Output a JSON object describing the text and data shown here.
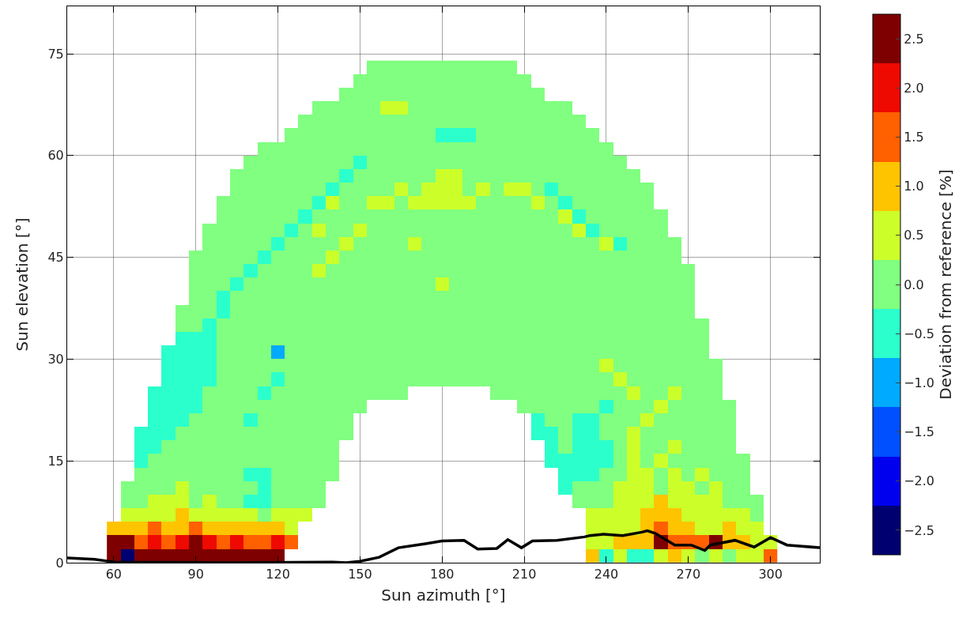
{
  "chart_data": {
    "type": "heatmap",
    "xlabel": "Sun azimuth [°]",
    "ylabel": "Sun elevation [°]",
    "clabel": "Deviation from reference [%]",
    "x": [
      60,
      65,
      70,
      75,
      80,
      85,
      90,
      95,
      100,
      105,
      110,
      115,
      120,
      125,
      130,
      135,
      140,
      145,
      150,
      155,
      160,
      165,
      170,
      175,
      180,
      185,
      190,
      195,
      200,
      205,
      210,
      215,
      220,
      225,
      230,
      235,
      240,
      245,
      250,
      255,
      260,
      265,
      270,
      275,
      280,
      285,
      290,
      295,
      300
    ],
    "y": [
      73,
      71,
      69,
      67,
      65,
      63,
      61,
      59,
      57,
      55,
      53,
      51,
      49,
      47,
      45,
      43,
      41,
      39,
      37,
      35,
      33,
      31,
      29,
      27,
      25,
      23,
      21,
      19,
      17,
      15,
      13,
      11,
      9,
      7,
      5,
      3,
      1
    ],
    "cells": [
      [
        null,
        null,
        null,
        null,
        null,
        null,
        null,
        null,
        null,
        null,
        null,
        null,
        null,
        null,
        null,
        null,
        null,
        null,
        null,
        0,
        0,
        0,
        0,
        0,
        0,
        0,
        0,
        0,
        0,
        0,
        null,
        null,
        null,
        null,
        null,
        null,
        null,
        null,
        null,
        null,
        null,
        null,
        null,
        null,
        null,
        null,
        null,
        null,
        null
      ],
      [
        null,
        null,
        null,
        null,
        null,
        null,
        null,
        null,
        null,
        null,
        null,
        null,
        null,
        null,
        null,
        null,
        null,
        null,
        0,
        0,
        0,
        0,
        0,
        0,
        0,
        0,
        0,
        0,
        0,
        0,
        0,
        null,
        null,
        null,
        null,
        null,
        null,
        null,
        null,
        null,
        null,
        null,
        null,
        null,
        null,
        null,
        null,
        null,
        null
      ],
      [
        null,
        null,
        null,
        null,
        null,
        null,
        null,
        null,
        null,
        null,
        null,
        null,
        null,
        null,
        null,
        null,
        null,
        0,
        0,
        0,
        0,
        0,
        0,
        0,
        0,
        0,
        0,
        0,
        0,
        0,
        0,
        0,
        null,
        null,
        null,
        null,
        null,
        null,
        null,
        null,
        null,
        null,
        null,
        null,
        null,
        null,
        null,
        null,
        null
      ],
      [
        null,
        null,
        null,
        null,
        null,
        null,
        null,
        null,
        null,
        null,
        null,
        null,
        null,
        null,
        null,
        0,
        0,
        0,
        0,
        0,
        0.5,
        0.5,
        0,
        0,
        0,
        0,
        0,
        0,
        0,
        0,
        0,
        0,
        0,
        0,
        null,
        null,
        null,
        null,
        null,
        null,
        null,
        null,
        null,
        null,
        null,
        null,
        null,
        null,
        null
      ],
      [
        null,
        null,
        null,
        null,
        null,
        null,
        null,
        null,
        null,
        null,
        null,
        null,
        null,
        null,
        0,
        0,
        0,
        0,
        0,
        0,
        0,
        0,
        0,
        0,
        0,
        0,
        0,
        0,
        0,
        0,
        0,
        0,
        0,
        0,
        0,
        null,
        null,
        null,
        null,
        null,
        null,
        null,
        null,
        null,
        null,
        null,
        null,
        null,
        null
      ],
      [
        null,
        null,
        null,
        null,
        null,
        null,
        null,
        null,
        null,
        null,
        null,
        null,
        null,
        0,
        0,
        0,
        0,
        0,
        0,
        0,
        0,
        0,
        0,
        0,
        -0.5,
        -0.5,
        -0.5,
        0,
        0,
        0,
        0,
        0,
        0,
        0,
        0,
        0,
        null,
        null,
        null,
        null,
        null,
        null,
        null,
        null,
        null,
        null,
        null,
        null,
        null
      ],
      [
        null,
        null,
        null,
        null,
        null,
        null,
        null,
        null,
        null,
        null,
        null,
        0,
        0,
        0,
        0,
        0,
        0,
        0,
        0,
        0,
        0,
        0,
        0,
        0,
        0,
        0,
        0,
        0,
        0,
        0,
        0,
        0,
        0,
        0,
        0,
        0,
        0,
        null,
        null,
        null,
        null,
        null,
        null,
        null,
        null,
        null,
        null,
        null,
        null
      ],
      [
        null,
        null,
        null,
        null,
        null,
        null,
        null,
        null,
        null,
        null,
        0,
        0,
        0,
        0,
        0,
        0,
        0,
        0,
        -0.5,
        0,
        0,
        0,
        0,
        0,
        0,
        0,
        0,
        0,
        0,
        0,
        0,
        0,
        0,
        0,
        0,
        0,
        0,
        0,
        null,
        null,
        null,
        null,
        null,
        null,
        null,
        null,
        null,
        null,
        null
      ],
      [
        null,
        null,
        null,
        null,
        null,
        null,
        null,
        null,
        null,
        0,
        0,
        0,
        0,
        0,
        0,
        0,
        0,
        -0.5,
        0,
        0,
        0,
        0,
        0,
        0,
        0.5,
        0.5,
        0,
        0,
        0,
        0,
        0,
        0,
        0,
        0,
        0,
        0,
        0,
        0,
        0,
        null,
        null,
        null,
        null,
        null,
        null,
        null,
        null,
        null,
        null
      ],
      [
        null,
        null,
        null,
        null,
        null,
        null,
        null,
        null,
        null,
        0,
        0,
        0,
        0,
        0,
        0,
        0,
        -0.5,
        0,
        0,
        0,
        0,
        0.5,
        0,
        0.5,
        0.5,
        0.5,
        0,
        0.5,
        0,
        0.5,
        0.5,
        0,
        -0.5,
        0,
        0,
        0,
        0,
        0,
        0,
        0,
        null,
        null,
        null,
        null,
        null,
        null,
        null,
        null,
        null
      ],
      [
        null,
        null,
        null,
        null,
        null,
        null,
        null,
        null,
        0,
        0,
        0,
        0,
        0,
        0,
        0,
        -0.5,
        0.5,
        0,
        0,
        0.5,
        0.5,
        0,
        0.5,
        0.5,
        0.5,
        0.5,
        0.5,
        0,
        0,
        0,
        0,
        0.5,
        0,
        -0.5,
        0,
        0,
        0,
        0,
        0,
        0,
        null,
        null,
        null,
        null,
        null,
        null,
        null,
        null,
        null
      ],
      [
        null,
        null,
        null,
        null,
        null,
        null,
        null,
        null,
        0,
        0,
        0,
        0,
        0,
        0,
        -0.5,
        0,
        0,
        0,
        0,
        0,
        0,
        0,
        0,
        0,
        0,
        0,
        0,
        0,
        0,
        0,
        0,
        0,
        0,
        0.5,
        -0.5,
        0,
        0,
        0,
        0,
        0,
        0,
        null,
        null,
        null,
        null,
        null,
        null,
        null,
        null
      ],
      [
        null,
        null,
        null,
        null,
        null,
        null,
        null,
        0,
        0,
        0,
        0,
        0,
        0,
        -0.5,
        0,
        0.5,
        0,
        0,
        0.5,
        0,
        0,
        0,
        0,
        0,
        0,
        0,
        0,
        0,
        0,
        0,
        0,
        0,
        0,
        0,
        0.5,
        -0.5,
        0,
        0,
        0,
        0,
        0,
        null,
        null,
        null,
        null,
        null,
        null,
        null,
        null
      ],
      [
        null,
        null,
        null,
        null,
        null,
        null,
        null,
        0,
        0,
        0,
        0,
        0,
        -0.5,
        0,
        0,
        0,
        0,
        0.5,
        0,
        0,
        0,
        0,
        0.5,
        0,
        0,
        0,
        0,
        0,
        0,
        0,
        0,
        0,
        0,
        0,
        0,
        0,
        0.5,
        -0.5,
        0,
        0,
        0,
        0,
        null,
        null,
        null,
        null,
        null,
        null,
        null
      ],
      [
        null,
        null,
        null,
        null,
        null,
        null,
        0,
        0,
        0,
        0,
        0,
        -0.5,
        0,
        0,
        0,
        0,
        0.5,
        0,
        0,
        0,
        0,
        0,
        0,
        0,
        0,
        0,
        0,
        0,
        0,
        0,
        0,
        0,
        0,
        0,
        0,
        0,
        0,
        0,
        0,
        0,
        0,
        0,
        null,
        null,
        null,
        null,
        null,
        null,
        null
      ],
      [
        null,
        null,
        null,
        null,
        null,
        null,
        0,
        0,
        0,
        0,
        -0.5,
        0,
        0,
        0,
        0,
        0.5,
        0,
        0,
        0,
        0,
        0,
        0,
        0,
        0,
        0,
        0,
        0,
        0,
        0,
        0,
        0,
        0,
        0,
        0,
        0,
        0,
        0,
        0,
        0,
        0,
        0,
        0,
        0,
        null,
        null,
        null,
        null,
        null,
        null
      ],
      [
        null,
        null,
        null,
        null,
        null,
        null,
        0,
        0,
        0,
        -0.5,
        0,
        0,
        0,
        0,
        0,
        0,
        0,
        0,
        0,
        0,
        0,
        0,
        0,
        0,
        0.5,
        0,
        0,
        0,
        0,
        0,
        0,
        0,
        0,
        0,
        0,
        0,
        0,
        0,
        0,
        0,
        0,
        0,
        0,
        null,
        null,
        null,
        null,
        null,
        null
      ],
      [
        null,
        null,
        null,
        null,
        null,
        null,
        0,
        0,
        -0.5,
        0,
        0,
        0,
        0,
        0,
        0,
        0,
        0,
        0,
        0,
        0,
        0,
        0,
        0,
        0,
        0,
        0,
        0,
        0,
        0,
        0,
        0,
        0,
        0,
        0,
        0,
        0,
        0,
        0,
        0,
        0,
        0,
        0,
        0,
        null,
        null,
        null,
        null,
        null,
        null
      ],
      [
        null,
        null,
        null,
        null,
        null,
        0,
        0,
        0,
        -0.5,
        0,
        0,
        0,
        0,
        0,
        0,
        0,
        0,
        0,
        0,
        0,
        0,
        0,
        0,
        0,
        0,
        0,
        0,
        0,
        0,
        0,
        0,
        0,
        0,
        0,
        0,
        0,
        0,
        0,
        0,
        0,
        0,
        0,
        0,
        null,
        null,
        null,
        null,
        null,
        null
      ],
      [
        null,
        null,
        null,
        null,
        null,
        0,
        0,
        -0.5,
        0,
        0,
        0,
        0,
        0,
        0,
        0,
        0,
        0,
        0,
        0,
        0,
        0,
        0,
        0,
        0,
        0,
        0,
        0,
        0,
        0,
        0,
        0,
        0,
        0,
        0,
        0,
        0,
        0,
        0,
        0,
        0,
        0,
        0,
        0,
        0,
        null,
        null,
        null,
        null,
        null
      ],
      [
        null,
        null,
        null,
        null,
        null,
        -0.5,
        -0.5,
        -0.5,
        0,
        0,
        0,
        0,
        0,
        0,
        0,
        0,
        0,
        0,
        0,
        0,
        0,
        0,
        0,
        0,
        0,
        0,
        0,
        0,
        0,
        0,
        0,
        0,
        0,
        0,
        0,
        0,
        0,
        0,
        0,
        0,
        0,
        0,
        0,
        0,
        null,
        null,
        null,
        null,
        null
      ],
      [
        null,
        null,
        null,
        null,
        -0.5,
        -0.5,
        -0.5,
        -0.5,
        0,
        0,
        0,
        0,
        -1.0,
        0,
        0,
        0,
        0,
        0,
        0,
        0,
        0,
        0,
        0,
        0,
        0,
        0,
        0,
        0,
        0,
        0,
        0,
        0,
        0,
        0,
        0,
        0,
        0,
        0,
        0,
        0,
        0,
        0,
        0,
        0,
        null,
        null,
        null,
        null,
        null
      ],
      [
        null,
        null,
        null,
        null,
        -0.5,
        -0.5,
        -0.5,
        -0.5,
        0,
        0,
        0,
        0,
        0,
        0,
        0,
        0,
        0,
        0,
        0,
        0,
        0,
        0,
        0,
        0,
        0,
        0,
        0,
        0,
        0,
        0,
        0,
        0,
        0,
        0,
        0,
        0,
        0.5,
        0,
        0,
        0,
        0,
        0,
        0,
        0,
        0,
        null,
        null,
        null,
        null
      ],
      [
        null,
        null,
        null,
        null,
        -0.5,
        -0.5,
        -0.5,
        -0.5,
        0,
        0,
        0,
        0,
        -0.5,
        0,
        0,
        0,
        0,
        0,
        0,
        0,
        0,
        0,
        0,
        0,
        0,
        0,
        0,
        0,
        0,
        0,
        0,
        0,
        0,
        0,
        0,
        0,
        0,
        0.5,
        0,
        0,
        0,
        0,
        0,
        0,
        0,
        null,
        null,
        null,
        null
      ],
      [
        null,
        null,
        null,
        -0.5,
        -0.5,
        -0.5,
        -0.5,
        0,
        0,
        0,
        0,
        -0.5,
        0,
        0,
        0,
        0,
        0,
        0,
        0,
        0,
        0,
        0,
        null,
        null,
        null,
        null,
        null,
        null,
        0,
        0,
        0,
        0,
        0,
        0,
        0,
        0,
        0,
        0,
        0.5,
        0,
        0,
        0.5,
        0,
        0,
        0,
        null,
        null,
        null,
        null
      ],
      [
        null,
        null,
        null,
        -0.5,
        -0.5,
        -0.5,
        -0.5,
        0,
        0,
        0,
        0,
        0,
        0,
        0,
        0,
        0,
        0,
        0,
        0,
        null,
        null,
        null,
        null,
        null,
        null,
        null,
        null,
        null,
        null,
        null,
        0,
        0,
        0,
        0,
        0,
        0,
        -0.5,
        0,
        0,
        0,
        0.5,
        0,
        0,
        0,
        0,
        0,
        null,
        null,
        null
      ],
      [
        null,
        null,
        null,
        -0.5,
        -0.5,
        -0.5,
        0,
        0,
        0,
        0,
        -0.5,
        0,
        0,
        0,
        0,
        0,
        0,
        0,
        null,
        null,
        null,
        null,
        null,
        null,
        null,
        null,
        null,
        null,
        null,
        null,
        null,
        -0.5,
        0,
        0,
        -0.5,
        -0.5,
        0,
        0,
        0,
        0.5,
        0,
        0,
        0,
        0,
        0,
        0,
        null,
        null,
        null
      ],
      [
        null,
        null,
        -0.5,
        -0.5,
        -0.5,
        0,
        0,
        0,
        0,
        0,
        0,
        0,
        0,
        0,
        0,
        0,
        0,
        0,
        null,
        null,
        null,
        null,
        null,
        null,
        null,
        null,
        null,
        null,
        null,
        null,
        null,
        -0.5,
        -0.5,
        0,
        -0.5,
        -0.5,
        0,
        0,
        0.5,
        0,
        0,
        0,
        0,
        0,
        0,
        0,
        null,
        null,
        null
      ],
      [
        null,
        null,
        -0.5,
        -0.5,
        0,
        0,
        0,
        0,
        0,
        0,
        0,
        0,
        0,
        0,
        0,
        0,
        0,
        null,
        null,
        null,
        null,
        null,
        null,
        null,
        null,
        null,
        null,
        null,
        null,
        null,
        null,
        null,
        -0.5,
        0,
        -0.5,
        -0.5,
        -0.5,
        0,
        0.5,
        0,
        0,
        0.5,
        0,
        0,
        0,
        0,
        null,
        null,
        null
      ],
      [
        null,
        null,
        -0.5,
        0,
        0,
        0,
        0,
        0,
        0,
        0,
        0,
        0,
        0,
        0,
        0,
        0,
        0,
        null,
        null,
        null,
        null,
        null,
        null,
        null,
        null,
        null,
        null,
        null,
        null,
        null,
        null,
        null,
        -0.5,
        -0.5,
        -0.5,
        -0.5,
        -0.5,
        0,
        0.5,
        0,
        0.5,
        0,
        0,
        0,
        0,
        0,
        0,
        null,
        null
      ],
      [
        null,
        null,
        0,
        0,
        0,
        0,
        0,
        0,
        0,
        0,
        -0.5,
        -0.5,
        0,
        0,
        0,
        0,
        0,
        null,
        null,
        null,
        null,
        null,
        null,
        null,
        null,
        null,
        null,
        null,
        null,
        null,
        null,
        null,
        null,
        -0.5,
        -0.5,
        -0.5,
        0,
        0,
        0.5,
        0.5,
        0,
        0.5,
        0,
        0.5,
        0,
        0,
        0,
        null,
        null
      ],
      [
        null,
        0,
        0,
        0,
        0,
        0.5,
        0,
        0,
        0,
        0,
        0,
        -0.5,
        0,
        0,
        0,
        0,
        null,
        null,
        null,
        null,
        null,
        null,
        null,
        null,
        null,
        null,
        null,
        null,
        null,
        null,
        null,
        null,
        null,
        -0.5,
        0,
        0,
        0,
        0.5,
        0.5,
        0.5,
        0,
        0.5,
        0.5,
        0,
        0.5,
        0,
        0,
        null,
        null
      ],
      [
        null,
        0,
        0,
        0.5,
        0.5,
        0.5,
        0,
        0.5,
        0,
        0,
        -0.5,
        -0.5,
        0,
        0,
        0,
        0,
        null,
        null,
        null,
        null,
        null,
        null,
        null,
        null,
        null,
        null,
        null,
        null,
        null,
        null,
        null,
        null,
        null,
        null,
        0,
        0,
        0,
        0.5,
        0.5,
        0.5,
        1.0,
        0.5,
        0.5,
        0.5,
        0.5,
        0,
        0,
        0,
        null
      ],
      [
        null,
        0.5,
        0.5,
        0.5,
        0.5,
        1.0,
        0.5,
        0.5,
        0.5,
        0.5,
        0.5,
        0,
        0.5,
        0.5,
        0.5,
        null,
        null,
        null,
        null,
        null,
        null,
        null,
        null,
        null,
        null,
        null,
        null,
        null,
        null,
        null,
        null,
        null,
        null,
        null,
        null,
        0.5,
        0.5,
        0.5,
        0.5,
        1.0,
        1.0,
        1.0,
        0.5,
        0.5,
        0.5,
        0.5,
        0.5,
        0,
        null
      ],
      [
        1.0,
        1.0,
        1.0,
        1.5,
        1.0,
        1.0,
        1.5,
        1.0,
        1.0,
        1.0,
        1.0,
        1.0,
        1.0,
        0.5,
        null,
        null,
        null,
        null,
        null,
        null,
        null,
        null,
        null,
        null,
        null,
        null,
        null,
        null,
        null,
        null,
        null,
        null,
        null,
        null,
        null,
        0.5,
        0.5,
        0.5,
        0.5,
        1.0,
        1.5,
        1.0,
        1.0,
        0.5,
        0.5,
        1.0,
        0.5,
        0.5,
        null
      ],
      [
        2.5,
        2.5,
        1.5,
        2.0,
        1.5,
        2.0,
        2.5,
        2.0,
        1.5,
        2.0,
        1.5,
        1.5,
        2.0,
        1.5,
        null,
        null,
        null,
        null,
        null,
        null,
        null,
        null,
        null,
        null,
        null,
        null,
        null,
        null,
        null,
        null,
        null,
        null,
        null,
        null,
        null,
        0.5,
        0.5,
        1.0,
        1.0,
        1.0,
        2.5,
        1.5,
        1.5,
        1.5,
        2.5,
        1.0,
        1.0,
        0.5,
        0.5
      ],
      [
        2.5,
        -2.5,
        2.5,
        2.5,
        2.5,
        2.5,
        2.5,
        2.5,
        2.5,
        2.5,
        2.5,
        2.5,
        2.5,
        null,
        null,
        null,
        null,
        null,
        null,
        null,
        null,
        null,
        null,
        null,
        null,
        null,
        null,
        null,
        null,
        null,
        null,
        null,
        null,
        null,
        null,
        1.0,
        -0.5,
        0.5,
        -0.5,
        -0.5,
        0.5,
        1.0,
        0.5,
        0,
        0.5,
        0,
        0.5,
        0.5,
        1.5
      ]
    ],
    "colors": [
      "#000070",
      "#0000ee",
      "#0050ff",
      "#00aaff",
      "#2bffcc",
      "#80ff80",
      "#ccff2a",
      "#ffc400",
      "#ff6000",
      "#ee0a00",
      "#7f0000"
    ],
    "clim": [
      -2.75,
      2.75
    ],
    "cticks": [
      {
        "value": -2.5,
        "label": "−2.5"
      },
      {
        "value": -2,
        "label": "−2.0"
      },
      {
        "value": -1.5,
        "label": "−1.5"
      },
      {
        "value": -1,
        "label": "−1.0"
      },
      {
        "value": -0.5,
        "label": "−0.5"
      },
      {
        "value": 0,
        "label": "0.0"
      },
      0.5,
      {
        "value": 1,
        "label": "1.0"
      },
      1.5,
      {
        "value": 2,
        "label": "2.0"
      },
      2.5
    ],
    "series": [
      {
        "type": "line",
        "color": "#000000",
        "x": [
          43,
          53,
          60,
          100,
          140,
          145,
          150,
          157,
          164,
          174,
          180,
          188,
          193,
          200,
          204,
          209,
          213,
          222,
          232,
          234,
          239,
          246,
          253,
          255,
          258,
          265,
          271,
          276,
          278,
          287,
          294,
          300,
          306,
          318
        ],
        "values": [
          0.7,
          0.5,
          0.1,
          0,
          0.1,
          0,
          0.2,
          0.8,
          2.2,
          2.8,
          3.2,
          3.3,
          2.0,
          2.1,
          3.4,
          2.2,
          3.2,
          3.3,
          3.8,
          4.0,
          4.2,
          4.0,
          4.5,
          4.7,
          4.3,
          2.6,
          2.6,
          1.8,
          2.6,
          3.3,
          2.3,
          3.7,
          2.6,
          2.2
        ]
      }
    ],
    "xlim": [
      43,
      318
    ],
    "ylim": [
      0,
      82
    ],
    "xticks": [
      60,
      90,
      120,
      150,
      180,
      210,
      240,
      270,
      300
    ],
    "yticks": [
      0,
      15,
      30,
      45,
      60,
      75
    ],
    "grid": true
  }
}
